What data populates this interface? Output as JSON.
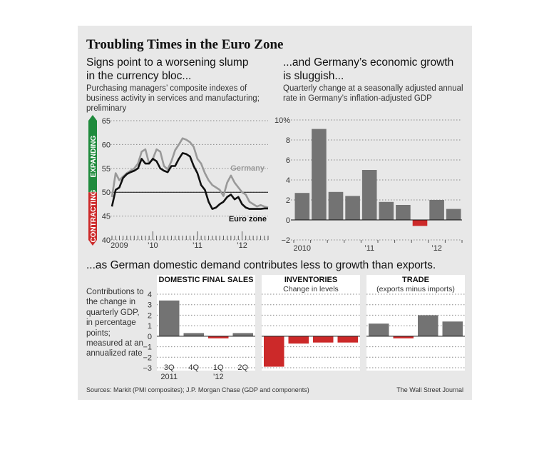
{
  "title": "Troubling Times in the Euro Zone",
  "pmi_panel": {
    "subhead_line1": "Signs point to a worsening slump",
    "subhead_line2": "in the currency bloc...",
    "desc_line1": "Purchasing managers’ composite indexes of",
    "desc_line2": "business activity in services and manufacturing;",
    "desc_line3": "preliminary",
    "expanding_label": "EXPANDING",
    "contracting_label": "CONTRACTING"
  },
  "gdp_panel": {
    "subhead_line1": "...and Germany’s economic growth",
    "subhead_line2": "is sluggish...",
    "desc_line1": "Quarterly change at a seasonally adjusted annual",
    "desc_line2": "rate in Germany’s inflation-adjusted GDP"
  },
  "contrib_panel": {
    "subhead": "...as German domestic demand contributes less to growth than exports.",
    "desc": "Contributions to the change in quarterly GDP, in percentage points; measured at an annualized rate"
  },
  "colors": {
    "germany": "#999999",
    "eurozone": "#111111",
    "bar": "#737373",
    "negative": "#cc2929",
    "expanding": "#1f8a3c",
    "contracting": "#cc2929"
  },
  "footer": {
    "source": "Sources: Markit (PMI composites); J.P. Morgan Chase (GDP and components)",
    "credit": "The Wall Street Journal"
  },
  "chart_data": [
    {
      "id": "pmi",
      "type": "line",
      "ylim": [
        40,
        65
      ],
      "yticks": [
        "40",
        "45",
        "50",
        "55",
        "60",
        "65"
      ],
      "reference_line": 50,
      "x_start": "2009-02",
      "x_end": "2012-08",
      "xtick_labels": [
        {
          "label": "2009",
          "date": "2009-04"
        },
        {
          "label": "’10",
          "date": "2010-01"
        },
        {
          "label": "’11",
          "date": "2011-01"
        },
        {
          "label": "’12",
          "date": "2012-01"
        }
      ],
      "series": [
        {
          "name": "Germany",
          "dates": [
            "2009-02",
            "2009-03",
            "2009-04",
            "2009-05",
            "2009-06",
            "2009-07",
            "2009-08",
            "2009-09",
            "2009-10",
            "2009-11",
            "2009-12",
            "2010-01",
            "2010-02",
            "2010-03",
            "2010-04",
            "2010-05",
            "2010-06",
            "2010-07",
            "2010-08",
            "2010-09",
            "2010-10",
            "2010-11",
            "2010-12",
            "2011-01",
            "2011-02",
            "2011-03",
            "2011-04",
            "2011-05",
            "2011-06",
            "2011-07",
            "2011-08",
            "2011-09",
            "2011-10",
            "2011-11",
            "2011-12",
            "2012-01",
            "2012-02",
            "2012-03",
            "2012-04",
            "2012-05",
            "2012-06",
            "2012-07",
            "2012-08"
          ],
          "values": [
            49.0,
            54.0,
            52.5,
            53.3,
            54.0,
            54.5,
            55.0,
            56.0,
            58.5,
            59.0,
            56.0,
            57.0,
            59.0,
            58.5,
            55.5,
            54.8,
            56.5,
            58.8,
            60.0,
            61.3,
            61.0,
            60.5,
            59.5,
            57.0,
            56.0,
            54.0,
            52.5,
            51.5,
            51.0,
            50.5,
            49.2,
            52.0,
            53.5,
            52.0,
            51.0,
            50.0,
            49.5,
            48.0,
            47.5,
            47.0,
            47.3,
            47.0,
            46.8
          ]
        },
        {
          "name": "Euro zone",
          "dates": [
            "2009-02",
            "2009-03",
            "2009-04",
            "2009-05",
            "2009-06",
            "2009-07",
            "2009-08",
            "2009-09",
            "2009-10",
            "2009-11",
            "2009-12",
            "2010-01",
            "2010-02",
            "2010-03",
            "2010-04",
            "2010-05",
            "2010-06",
            "2010-07",
            "2010-08",
            "2010-09",
            "2010-10",
            "2010-11",
            "2010-12",
            "2011-01",
            "2011-02",
            "2011-03",
            "2011-04",
            "2011-05",
            "2011-06",
            "2011-07",
            "2011-08",
            "2011-09",
            "2011-10",
            "2011-11",
            "2011-12",
            "2012-01",
            "2012-02",
            "2012-03",
            "2012-04",
            "2012-05",
            "2012-06",
            "2012-07",
            "2012-08"
          ],
          "values": [
            47.0,
            50.5,
            51.0,
            53.0,
            53.8,
            54.2,
            54.5,
            55.0,
            57.0,
            56.0,
            56.0,
            57.0,
            56.5,
            55.0,
            54.5,
            54.2,
            55.5,
            55.5,
            57.0,
            58.2,
            58.0,
            57.5,
            55.5,
            54.0,
            51.5,
            50.5,
            48.0,
            46.5,
            46.8,
            47.5,
            48.0,
            49.0,
            49.5,
            48.5,
            49.0,
            47.5,
            46.8,
            46.5,
            46.5,
            46.5,
            46.5,
            46.6,
            46.6
          ]
        }
      ]
    },
    {
      "id": "gdp",
      "type": "bar",
      "ylim": [
        -2,
        10
      ],
      "yticks": [
        "−2",
        "0",
        "2",
        "4",
        "6",
        "8",
        "10%"
      ],
      "values": [
        2.7,
        9.1,
        2.8,
        2.4,
        5.0,
        1.8,
        1.5,
        -0.6,
        2.0,
        1.1
      ],
      "xtick_labels": [
        {
          "label": "2010",
          "index": 0
        },
        {
          "label": "’11",
          "index": 4
        },
        {
          "label": "’12",
          "index": 8
        }
      ]
    },
    {
      "id": "contributions",
      "type": "bar",
      "ylim": [
        -3,
        4
      ],
      "yticks": [
        "4",
        "3",
        "2",
        "1",
        "0",
        "−1",
        "−2",
        "−3"
      ],
      "categories": [
        "3Q",
        "4Q",
        "1Q",
        "2Q"
      ],
      "category_years": [
        "2011",
        "",
        "’12",
        ""
      ],
      "groups": [
        {
          "name": "DOMESTIC FINAL SALES",
          "subtitle": "",
          "values": [
            3.4,
            0.3,
            -0.2,
            0.3
          ]
        },
        {
          "name": "INVENTORIES",
          "subtitle": "Change in levels",
          "values": [
            -2.9,
            -0.7,
            -0.6,
            -0.6
          ]
        },
        {
          "name": "TRADE",
          "subtitle": "(exports minus imports)",
          "values": [
            1.2,
            -0.2,
            2.0,
            1.4
          ]
        }
      ]
    }
  ]
}
